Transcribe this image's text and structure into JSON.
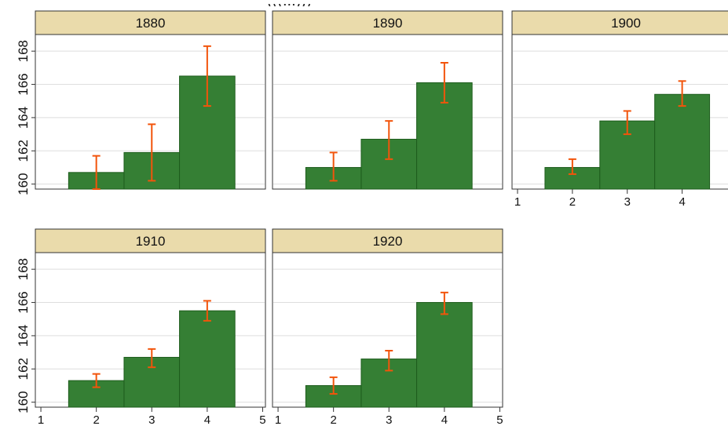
{
  "partial_header_text": "(((...)))",
  "chart_data": {
    "type": "bar",
    "x_ticks": [
      1,
      2,
      3,
      4,
      5
    ],
    "y_ticks": [
      160,
      162,
      164,
      166,
      168
    ],
    "ylim": [
      159.7,
      169
    ],
    "xlim": [
      0.9,
      5.05
    ],
    "grid": true,
    "colors": {
      "bar_fill": "#357f34",
      "bar_stroke": "#1d5c1c",
      "error_bar": "#f2540b",
      "strip": "#eadbab",
      "grid": "#dedede"
    },
    "panels": [
      {
        "title": "1880",
        "bars": [
          {
            "x": 2,
            "value": 160.7,
            "ci": [
              159.7,
              161.7
            ]
          },
          {
            "x": 3,
            "value": 161.9,
            "ci": [
              160.2,
              163.6
            ]
          },
          {
            "x": 4,
            "value": 166.5,
            "ci": [
              164.7,
              168.3
            ]
          }
        ]
      },
      {
        "title": "1890",
        "bars": [
          {
            "x": 2,
            "value": 161.0,
            "ci": [
              160.2,
              161.9
            ]
          },
          {
            "x": 3,
            "value": 162.7,
            "ci": [
              161.5,
              163.8
            ]
          },
          {
            "x": 4,
            "value": 166.1,
            "ci": [
              164.9,
              167.3
            ]
          }
        ]
      },
      {
        "title": "1900",
        "bars": [
          {
            "x": 2,
            "value": 161.0,
            "ci": [
              160.6,
              161.5
            ]
          },
          {
            "x": 3,
            "value": 163.8,
            "ci": [
              163.0,
              164.4
            ]
          },
          {
            "x": 4,
            "value": 165.4,
            "ci": [
              164.7,
              166.2
            ]
          }
        ]
      },
      {
        "title": "1910",
        "bars": [
          {
            "x": 2,
            "value": 161.3,
            "ci": [
              160.9,
              161.7
            ]
          },
          {
            "x": 3,
            "value": 162.7,
            "ci": [
              162.1,
              163.2
            ]
          },
          {
            "x": 4,
            "value": 165.5,
            "ci": [
              164.9,
              166.1
            ]
          }
        ]
      },
      {
        "title": "1920",
        "bars": [
          {
            "x": 2,
            "value": 161.0,
            "ci": [
              160.5,
              161.5
            ]
          },
          {
            "x": 3,
            "value": 162.6,
            "ci": [
              161.9,
              163.1
            ]
          },
          {
            "x": 4,
            "value": 166.0,
            "ci": [
              165.3,
              166.6
            ]
          }
        ]
      }
    ]
  }
}
